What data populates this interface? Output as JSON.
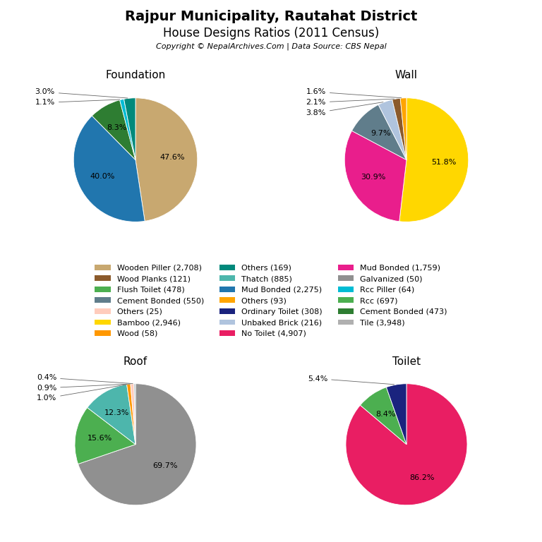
{
  "title": "Rajpur Municipality, Rautahat District",
  "subtitle": "House Designs Ratios (2011 Census)",
  "annotations": [
    "Copyright © NepalArchives.Com | Data Source: CBS Nepal"
  ],
  "legend": "center",
  "legend_entries": [
    {
      "name": "Wooden Piller (2,708)",
      "color": "#c8a870"
    },
    {
      "name": "Others (169)",
      "color": "#00897b"
    },
    {
      "name": "Mud Bonded (1,759)",
      "color": "#e91e8c"
    },
    {
      "name": "Wood Planks (121)",
      "color": "#8b5a2b"
    },
    {
      "name": "Thatch (885)",
      "color": "#4db6ac"
    },
    {
      "name": "Galvanized (50)",
      "color": "#909090"
    },
    {
      "name": "Flush Toilet (478)",
      "color": "#4caf50"
    },
    {
      "name": "Mud Bonded (2,275)",
      "color": "#2176ae"
    },
    {
      "name": "Rcc Piller (64)",
      "color": "#00bcd4"
    },
    {
      "name": "Cement Bonded (550)",
      "color": "#607d8b"
    },
    {
      "name": "Others (93)",
      "color": "#ffa500"
    },
    {
      "name": "Rcc (697)",
      "color": "#4caf50"
    },
    {
      "name": "Others (25)",
      "color": "#ffccbc"
    },
    {
      "name": "Ordinary Toilet (308)",
      "color": "#1a237e"
    },
    {
      "name": "Cement Bonded (473)",
      "color": "#2e7d32"
    },
    {
      "name": "Bamboo (2,946)",
      "color": "#ffd700"
    },
    {
      "name": "Unbaked Brick (216)",
      "color": "#b0c4de"
    },
    {
      "name": "Tile (3,948)",
      "color": "#b0b0b0"
    },
    {
      "name": "Wood (58)",
      "color": "#ff9800"
    },
    {
      "name": "No Toilet (4,907)",
      "color": "#e91e63"
    }
  ],
  "chart_data": [
    {
      "type": "pie",
      "title": "Foundation",
      "values": [
        47.6,
        40.0,
        8.3,
        1.1,
        3.0
      ],
      "value_labels": [
        "47.6%",
        "40.0%",
        "8.3%",
        "1.1%",
        "3.0%"
      ],
      "colors": [
        "#c8a870",
        "#2176ae",
        "#2e7d32",
        "#00bcd4",
        "#00897b"
      ],
      "data_labels": true
    },
    {
      "type": "pie",
      "title": "Wall",
      "values": [
        51.8,
        30.9,
        9.7,
        3.8,
        2.1,
        1.6
      ],
      "value_labels": [
        "51.8%",
        "30.9%",
        "9.7%",
        "3.8%",
        "2.1%",
        "1.6%"
      ],
      "colors": [
        "#ffd700",
        "#e91e8c",
        "#607d8b",
        "#b0c4de",
        "#8b5a2b",
        "#ffa500"
      ],
      "data_labels": true
    },
    {
      "type": "pie",
      "title": "Roof",
      "values": [
        69.7,
        15.6,
        12.3,
        1.0,
        0.9,
        0.4
      ],
      "value_labels": [
        "69.7%",
        "15.6%",
        "12.3%",
        "1.0%",
        "0.9%",
        "0.4%"
      ],
      "colors": [
        "#909090",
        "#4caf50",
        "#4db6ac",
        "#ff9800",
        "#ffccbc",
        "#b0bec5"
      ],
      "data_labels": true
    },
    {
      "type": "pie",
      "title": "Toilet",
      "values": [
        86.2,
        8.4,
        5.4
      ],
      "value_labels": [
        "86.2%",
        "8.4%",
        "5.4%"
      ],
      "colors": [
        "#e91e63",
        "#4caf50",
        "#1a237e"
      ],
      "data_labels": true
    }
  ]
}
